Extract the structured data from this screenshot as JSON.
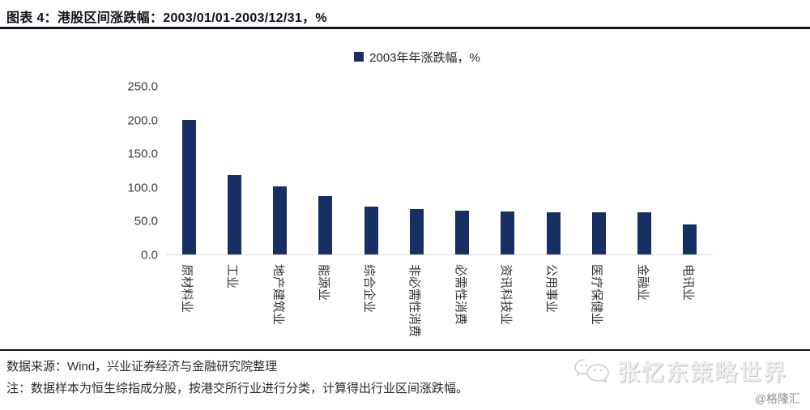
{
  "header": {
    "title": "图表 4：港股区间涨跌幅：2003/01/01-2003/12/31，%"
  },
  "chart_data": {
    "type": "bar",
    "legend": "2003年年涨跌幅，%",
    "legend_position": "top-center",
    "categories": [
      "原材料业",
      "工业",
      "地产建筑业",
      "能源业",
      "综合企业",
      "非必需性消费",
      "必需性消费",
      "资讯科技业",
      "公用事业",
      "医疗保健业",
      "金融业",
      "电讯业"
    ],
    "values": [
      199,
      118,
      101,
      86,
      71,
      67,
      65,
      64,
      63,
      62,
      62,
      44
    ],
    "title": "港股区间涨跌幅：2003/01/01-2003/12/31，%",
    "xlabel": "",
    "ylabel": "",
    "ylim": [
      0,
      250
    ],
    "ytick_labels": [
      "250.0",
      "200.0",
      "150.0",
      "100.0",
      "50.0",
      "0.0"
    ],
    "ytick_values": [
      250,
      200,
      150,
      100,
      50,
      0
    ],
    "grid": "off",
    "bar_color": "#182f63"
  },
  "footer": {
    "source": "数据来源：Wind，兴业证券经济与金融研究院整理",
    "note": "注：数据样本为恒生综指成分股，按港交所行业进行分类，计算得出行业区间涨跌幅。"
  },
  "watermark": {
    "brand": "张忆东策略世界",
    "handle": "@格隆汇",
    "icon": "wechat-bubbles-icon"
  },
  "colors": {
    "navy": "#182f63",
    "rule": "#12121f",
    "baseline": "#d9d9d9",
    "watermark_gray": "#cccccc"
  }
}
